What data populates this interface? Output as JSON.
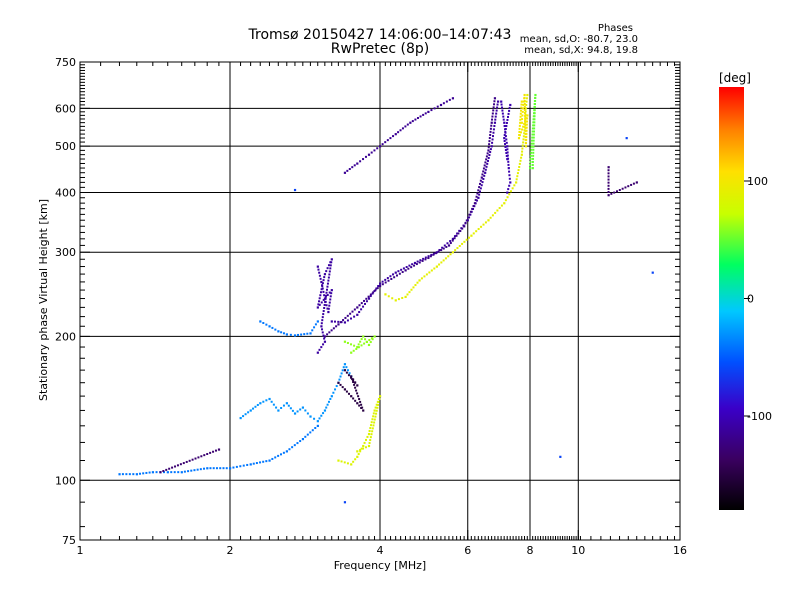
{
  "chart_data": {
    "type": "scatter",
    "title": "Tromsø 20150427 14:06:00–14:07:43",
    "subtitle": "RwPretec (8p)",
    "xlabel": "Frequency [MHz]",
    "ylabel": "Stationary phase Virtual Height [km]",
    "xscale": "log2",
    "yscale": "log",
    "xlim": [
      1,
      16
    ],
    "ylim": [
      75,
      750
    ],
    "xticks": [
      1,
      2,
      4,
      6,
      8,
      10,
      16
    ],
    "yticks": [
      75,
      100,
      200,
      300,
      400,
      500,
      600,
      750
    ],
    "grid": true,
    "colorbar": {
      "label": "[deg]",
      "range": [
        -180,
        180
      ],
      "ticks": [
        -100,
        0,
        100
      ]
    },
    "phases": {
      "header": "Phases",
      "line1": "mean, sd,O: -80.7, 23.0",
      "line2": "mean, sd,X:  94.8, 19.8"
    },
    "traces": [
      {
        "name": "",
        "phase": -110,
        "points": [
          [
            3.2,
            215
          ],
          [
            3.4,
            214
          ],
          [
            3.6,
            222
          ],
          [
            3.8,
            240
          ],
          [
            4.0,
            258
          ],
          [
            4.3,
            272
          ],
          [
            4.7,
            285
          ],
          [
            5.2,
            300
          ],
          [
            5.6,
            320
          ],
          [
            6.0,
            350
          ],
          [
            6.3,
            390
          ],
          [
            6.5,
            440
          ],
          [
            6.7,
            500
          ],
          [
            6.8,
            560
          ],
          [
            6.9,
            620
          ]
        ]
      },
      {
        "name": "",
        "phase": -120,
        "points": [
          [
            3.1,
            200
          ],
          [
            3.3,
            212
          ],
          [
            3.6,
            230
          ],
          [
            4.0,
            255
          ],
          [
            4.5,
            275
          ],
          [
            5.0,
            292
          ],
          [
            5.5,
            310
          ],
          [
            5.9,
            340
          ],
          [
            6.2,
            380
          ],
          [
            6.4,
            430
          ],
          [
            6.6,
            490
          ],
          [
            6.7,
            560
          ],
          [
            6.8,
            630
          ]
        ]
      },
      {
        "name": "",
        "phase": -115,
        "points": [
          [
            3.4,
            440
          ],
          [
            3.6,
            460
          ],
          [
            3.8,
            480
          ],
          [
            4.0,
            500
          ],
          [
            4.3,
            530
          ],
          [
            4.6,
            560
          ],
          [
            5.0,
            590
          ],
          [
            5.3,
            610
          ],
          [
            5.6,
            630
          ]
        ]
      },
      {
        "name": "",
        "phase": -105,
        "points": [
          [
            7.0,
            620
          ],
          [
            7.1,
            560
          ],
          [
            7.2,
            500
          ],
          [
            7.25,
            450
          ],
          [
            7.3,
            420
          ],
          [
            7.2,
            400
          ],
          [
            7.3,
            610
          ],
          [
            7.1,
            520
          ],
          [
            7.2,
            470
          ]
        ]
      },
      {
        "name": "",
        "phase": 90,
        "points": [
          [
            4.1,
            245
          ],
          [
            4.3,
            238
          ],
          [
            4.5,
            242
          ],
          [
            4.8,
            262
          ],
          [
            5.2,
            280
          ],
          [
            5.6,
            300
          ],
          [
            6.1,
            325
          ],
          [
            6.6,
            350
          ],
          [
            7.1,
            380
          ],
          [
            7.5,
            420
          ],
          [
            7.7,
            480
          ],
          [
            7.8,
            540
          ],
          [
            7.85,
            600
          ],
          [
            7.9,
            640
          ]
        ]
      },
      {
        "name": "",
        "phase": 100,
        "points": [
          [
            7.7,
            560
          ],
          [
            7.75,
            600
          ],
          [
            7.8,
            640
          ],
          [
            7.85,
            500
          ],
          [
            7.9,
            580
          ],
          [
            7.6,
            520
          ],
          [
            7.7,
            620
          ]
        ]
      },
      {
        "name": "",
        "phase": -40,
        "points": [
          [
            1.2,
            103
          ],
          [
            1.3,
            103
          ],
          [
            1.4,
            104
          ],
          [
            1.5,
            104
          ],
          [
            1.6,
            104
          ],
          [
            1.8,
            106
          ],
          [
            2.0,
            106
          ],
          [
            2.2,
            108
          ],
          [
            2.4,
            110
          ],
          [
            2.6,
            115
          ],
          [
            2.8,
            122
          ],
          [
            3.0,
            130
          ]
        ]
      },
      {
        "name": "",
        "phase": -40,
        "points": [
          [
            2.3,
            215
          ],
          [
            2.4,
            210
          ],
          [
            2.5,
            205
          ],
          [
            2.6,
            202
          ],
          [
            2.7,
            201
          ],
          [
            2.9,
            203
          ],
          [
            3.0,
            215
          ]
        ]
      },
      {
        "name": "",
        "phase": -30,
        "points": [
          [
            2.1,
            135
          ],
          [
            2.2,
            140
          ],
          [
            2.3,
            145
          ],
          [
            2.4,
            148
          ],
          [
            2.5,
            140
          ],
          [
            2.6,
            145
          ],
          [
            2.7,
            138
          ],
          [
            2.8,
            142
          ],
          [
            2.9,
            136
          ],
          [
            3.0,
            133
          ],
          [
            3.1,
            140
          ],
          [
            3.2,
            150
          ],
          [
            3.3,
            160
          ],
          [
            3.4,
            175
          ],
          [
            3.5,
            165
          ]
        ]
      },
      {
        "name": "",
        "phase": -110,
        "points": [
          [
            3.0,
            280
          ],
          [
            3.05,
            260
          ],
          [
            3.1,
            240
          ],
          [
            3.15,
            225
          ],
          [
            3.2,
            250
          ],
          [
            3.0,
            230
          ],
          [
            3.1,
            270
          ],
          [
            3.2,
            290
          ],
          [
            3.05,
            210
          ],
          [
            3.1,
            195
          ],
          [
            3.0,
            185
          ]
        ]
      },
      {
        "name": "",
        "phase": -150,
        "points": [
          [
            3.3,
            160
          ],
          [
            3.4,
            155
          ],
          [
            3.5,
            150
          ],
          [
            3.6,
            145
          ],
          [
            3.7,
            140
          ],
          [
            3.5,
            165
          ],
          [
            3.6,
            158
          ],
          [
            3.4,
            170
          ]
        ]
      },
      {
        "name": "",
        "phase": 85,
        "points": [
          [
            3.3,
            110
          ],
          [
            3.5,
            108
          ],
          [
            3.6,
            112
          ],
          [
            3.7,
            118
          ],
          [
            3.8,
            125
          ],
          [
            3.9,
            140
          ],
          [
            4.0,
            150
          ],
          [
            3.8,
            118
          ],
          [
            3.6,
            115
          ]
        ]
      },
      {
        "name": "",
        "phase": 60,
        "points": [
          [
            3.4,
            195
          ],
          [
            3.6,
            190
          ],
          [
            3.7,
            200
          ],
          [
            3.8,
            192
          ],
          [
            3.9,
            200
          ],
          [
            3.5,
            185
          ]
        ]
      },
      {
        "name": "",
        "phase": -130,
        "points": [
          [
            1.45,
            104
          ],
          [
            1.9,
            116
          ],
          [
            11.5,
            452
          ],
          [
            11.5,
            395
          ],
          [
            13.1,
            420
          ]
        ]
      },
      {
        "name": "",
        "phase": -60,
        "points": [
          [
            12.5,
            520
          ],
          [
            9.2,
            112
          ],
          [
            2.7,
            405
          ],
          [
            14.1,
            272
          ],
          [
            3.4,
            90
          ]
        ]
      },
      {
        "name": "",
        "phase": 50,
        "points": [
          [
            8.1,
            450
          ],
          [
            8.2,
            640
          ],
          [
            8.0,
            450
          ]
        ]
      }
    ]
  }
}
